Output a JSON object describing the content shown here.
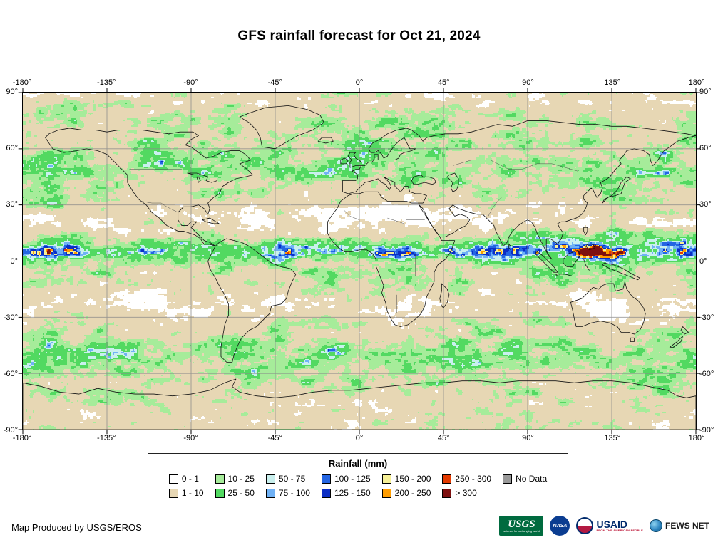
{
  "title": "GFS rainfall forecast for Oct 21, 2024",
  "map": {
    "x_ticks": [
      "-180°",
      "-135°",
      "-90°",
      "-45°",
      "0°",
      "45°",
      "90°",
      "135°",
      "180°"
    ],
    "y_ticks": [
      "90°",
      "60°",
      "30°",
      "0°",
      "-30°",
      "-60°",
      "-90°"
    ]
  },
  "legend": {
    "title": "Rainfall (mm)",
    "entries": [
      {
        "label": "0 - 1",
        "color": "#ffffff"
      },
      {
        "label": "1 - 10",
        "color": "#e7d7b4"
      },
      {
        "label": "10 - 25",
        "color": "#a6ec9a"
      },
      {
        "label": "25 - 50",
        "color": "#52d961"
      },
      {
        "label": "50 - 75",
        "color": "#c9f0ee"
      },
      {
        "label": "75 - 100",
        "color": "#6fb1f5"
      },
      {
        "label": "100 - 125",
        "color": "#2465e3"
      },
      {
        "label": "125 - 150",
        "color": "#0c2ec4"
      },
      {
        "label": "150 - 200",
        "color": "#f6f096"
      },
      {
        "label": "200 - 250",
        "color": "#ff9d00"
      },
      {
        "label": "250 - 300",
        "color": "#e43a00"
      },
      {
        "label": "> 300",
        "color": "#7e1010"
      },
      {
        "label": "No Data",
        "color": "#999999"
      }
    ]
  },
  "footer": {
    "credit": "Map Produced by USGS/EROS",
    "logos": {
      "usgs": {
        "name": "USGS",
        "tagline": "science for a changing world"
      },
      "nasa": {
        "name": "NASA"
      },
      "usaid": {
        "name": "USAID",
        "tagline": "FROM THE AMERICAN PEOPLE"
      },
      "fewsnet": {
        "name": "FEWS NET"
      }
    }
  }
}
